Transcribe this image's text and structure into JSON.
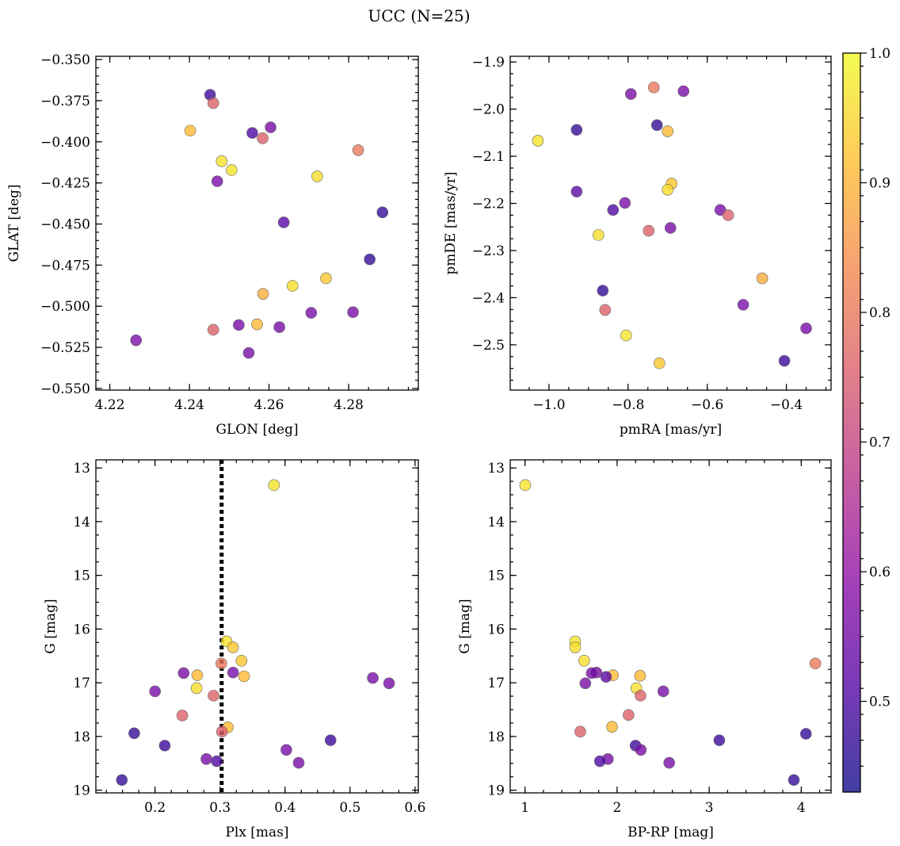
{
  "title": "UCC (N=25)",
  "colorbar": {
    "ticks": [
      "0.5",
      "0.6",
      "0.7",
      "0.8",
      "0.9",
      "1.0"
    ],
    "tick_values": [
      0.5,
      0.6,
      0.7,
      0.8,
      0.9,
      1.0
    ],
    "range": [
      0.43,
      1.0
    ],
    "colormap": [
      "#0d0887",
      "#5302a3",
      "#8b0aa5",
      "#b83289",
      "#db5c68",
      "#f48849",
      "#febd2a",
      "#f0f921"
    ],
    "alpha": 0.78
  },
  "chart_data": [
    {
      "type": "scatter",
      "xlabel": "GLON [deg]",
      "ylabel": "GLAT [deg]",
      "xlim": [
        4.2165,
        4.2975
      ],
      "ylim": [
        -0.551,
        -0.348
      ],
      "y_inverted": false,
      "xticks": [
        4.22,
        4.24,
        4.26,
        4.28
      ],
      "xtick_labels": [
        "4.22",
        "4.24",
        "4.26",
        "4.28"
      ],
      "yticks": [
        -0.35,
        -0.375,
        -0.4,
        -0.425,
        -0.45,
        -0.475,
        -0.5,
        -0.525,
        -0.55
      ],
      "ytick_labels": [
        "−0.350",
        "−0.375",
        "−0.400",
        "−0.425",
        "−0.450",
        "−0.475",
        "−0.500",
        "−0.525",
        "−0.550"
      ],
      "xminor": 0.005,
      "yminor": 0.005,
      "vline": null,
      "points": [
        {
          "x": 4.2452,
          "y": -0.3714,
          "c": 0.48
        },
        {
          "x": 4.246,
          "y": -0.3765,
          "c": 0.76
        },
        {
          "x": 4.2402,
          "y": -0.3932,
          "c": 0.91
        },
        {
          "x": 4.2558,
          "y": -0.3946,
          "c": 0.5
        },
        {
          "x": 4.2604,
          "y": -0.3912,
          "c": 0.56
        },
        {
          "x": 4.2584,
          "y": -0.3978,
          "c": 0.76
        },
        {
          "x": 4.2824,
          "y": -0.4051,
          "c": 0.8
        },
        {
          "x": 4.2481,
          "y": -0.4118,
          "c": 0.97
        },
        {
          "x": 4.2506,
          "y": -0.4172,
          "c": 0.97
        },
        {
          "x": 4.2721,
          "y": -0.421,
          "c": 0.96
        },
        {
          "x": 4.247,
          "y": -0.424,
          "c": 0.56
        },
        {
          "x": 4.2885,
          "y": -0.4429,
          "c": 0.47
        },
        {
          "x": 4.2637,
          "y": -0.449,
          "c": 0.52
        },
        {
          "x": 4.2853,
          "y": -0.4715,
          "c": 0.47
        },
        {
          "x": 4.2743,
          "y": -0.483,
          "c": 0.93
        },
        {
          "x": 4.2659,
          "y": -0.4876,
          "c": 0.96
        },
        {
          "x": 4.2585,
          "y": -0.4925,
          "c": 0.89
        },
        {
          "x": 4.2811,
          "y": -0.5036,
          "c": 0.56
        },
        {
          "x": 4.2706,
          "y": -0.504,
          "c": 0.56
        },
        {
          "x": 4.2524,
          "y": -0.5114,
          "c": 0.56
        },
        {
          "x": 4.257,
          "y": -0.511,
          "c": 0.91
        },
        {
          "x": 4.2626,
          "y": -0.5127,
          "c": 0.56
        },
        {
          "x": 4.246,
          "y": -0.5143,
          "c": 0.76
        },
        {
          "x": 4.2266,
          "y": -0.5207,
          "c": 0.56
        },
        {
          "x": 4.2549,
          "y": -0.5284,
          "c": 0.56
        }
      ]
    },
    {
      "type": "scatter",
      "xlabel": "pmRA [mas/yr]",
      "ylabel": "pmDE [mas/yr]",
      "xlim": [
        -1.098,
        -0.287
      ],
      "ylim": [
        -2.596,
        -1.888
      ],
      "y_inverted": false,
      "xticks": [
        -1.0,
        -0.8,
        -0.6,
        -0.4
      ],
      "xtick_labels": [
        "−1.0",
        "−0.8",
        "−0.6",
        "−0.4"
      ],
      "yticks": [
        -1.9,
        -2.0,
        -2.1,
        -2.2,
        -2.3,
        -2.4,
        -2.5
      ],
      "ytick_labels": [
        "−1.9",
        "−2.0",
        "−2.1",
        "−2.2",
        "−2.3",
        "−2.4",
        "−2.5"
      ],
      "xminor": 0.05,
      "yminor": 0.025,
      "vline": null,
      "points": [
        {
          "x": -0.735,
          "y": -1.954,
          "c": 0.8
        },
        {
          "x": -0.66,
          "y": -1.962,
          "c": 0.56
        },
        {
          "x": -0.793,
          "y": -1.968,
          "c": 0.56
        },
        {
          "x": -0.727,
          "y": -2.034,
          "c": 0.47
        },
        {
          "x": -0.93,
          "y": -2.044,
          "c": 0.47
        },
        {
          "x": -0.7,
          "y": -2.047,
          "c": 0.91
        },
        {
          "x": -1.028,
          "y": -2.067,
          "c": 0.97
        },
        {
          "x": -0.69,
          "y": -2.158,
          "c": 0.93
        },
        {
          "x": -0.7,
          "y": -2.171,
          "c": 0.96
        },
        {
          "x": -0.93,
          "y": -2.175,
          "c": 0.52
        },
        {
          "x": -0.808,
          "y": -2.199,
          "c": 0.56
        },
        {
          "x": -0.838,
          "y": -2.214,
          "c": 0.5
        },
        {
          "x": -0.567,
          "y": -2.214,
          "c": 0.56
        },
        {
          "x": -0.547,
          "y": -2.225,
          "c": 0.76
        },
        {
          "x": -0.693,
          "y": -2.252,
          "c": 0.56
        },
        {
          "x": -0.748,
          "y": -2.258,
          "c": 0.76
        },
        {
          "x": -0.875,
          "y": -2.267,
          "c": 0.96
        },
        {
          "x": -0.461,
          "y": -2.359,
          "c": 0.89
        },
        {
          "x": -0.864,
          "y": -2.385,
          "c": 0.47
        },
        {
          "x": -0.509,
          "y": -2.415,
          "c": 0.56
        },
        {
          "x": -0.858,
          "y": -2.426,
          "c": 0.76
        },
        {
          "x": -0.35,
          "y": -2.465,
          "c": 0.56
        },
        {
          "x": -0.805,
          "y": -2.48,
          "c": 0.97
        },
        {
          "x": -0.405,
          "y": -2.534,
          "c": 0.48
        },
        {
          "x": -0.721,
          "y": -2.539,
          "c": 0.93
        }
      ]
    },
    {
      "type": "scatter",
      "xlabel": "Plx [mas]",
      "ylabel": "G [mag]",
      "xlim": [
        0.109,
        0.605
      ],
      "ylim": [
        12.85,
        19.05
      ],
      "y_inverted": true,
      "xticks": [
        0.2,
        0.3,
        0.4,
        0.5,
        0.6
      ],
      "xtick_labels": [
        "0.2",
        "0.3",
        "0.4",
        "0.5",
        "0.6"
      ],
      "yticks": [
        13,
        14,
        15,
        16,
        17,
        18,
        19
      ],
      "ytick_labels": [
        "13",
        "14",
        "15",
        "16",
        "17",
        "18",
        "19"
      ],
      "xminor": 0.025,
      "yminor": 0.25,
      "vline": 0.3025,
      "points": [
        {
          "x": 0.383,
          "y": 13.32,
          "c": 0.97
        },
        {
          "x": 0.31,
          "y": 16.23,
          "c": 0.97
        },
        {
          "x": 0.32,
          "y": 16.34,
          "c": 0.93
        },
        {
          "x": 0.333,
          "y": 16.59,
          "c": 0.93
        },
        {
          "x": 0.302,
          "y": 16.64,
          "c": 0.8
        },
        {
          "x": 0.32,
          "y": 16.81,
          "c": 0.56
        },
        {
          "x": 0.244,
          "y": 16.82,
          "c": 0.56
        },
        {
          "x": 0.265,
          "y": 16.86,
          "c": 0.91
        },
        {
          "x": 0.337,
          "y": 16.88,
          "c": 0.91
        },
        {
          "x": 0.535,
          "y": 16.91,
          "c": 0.56
        },
        {
          "x": 0.56,
          "y": 17.01,
          "c": 0.56
        },
        {
          "x": 0.264,
          "y": 17.1,
          "c": 0.96
        },
        {
          "x": 0.2,
          "y": 17.16,
          "c": 0.56
        },
        {
          "x": 0.29,
          "y": 17.24,
          "c": 0.76
        },
        {
          "x": 0.242,
          "y": 17.61,
          "c": 0.76
        },
        {
          "x": 0.312,
          "y": 17.83,
          "c": 0.91
        },
        {
          "x": 0.303,
          "y": 17.91,
          "c": 0.76
        },
        {
          "x": 0.168,
          "y": 17.94,
          "c": 0.47
        },
        {
          "x": 0.47,
          "y": 18.07,
          "c": 0.48
        },
        {
          "x": 0.215,
          "y": 18.17,
          "c": 0.48
        },
        {
          "x": 0.402,
          "y": 18.25,
          "c": 0.56
        },
        {
          "x": 0.279,
          "y": 18.42,
          "c": 0.56
        },
        {
          "x": 0.295,
          "y": 18.46,
          "c": 0.5
        },
        {
          "x": 0.421,
          "y": 18.49,
          "c": 0.56
        },
        {
          "x": 0.149,
          "y": 18.81,
          "c": 0.47
        }
      ]
    },
    {
      "type": "scatter",
      "xlabel": "BP-RP [mag]",
      "ylabel": "G [mag]",
      "xlim": [
        0.839,
        4.324
      ],
      "ylim": [
        12.85,
        19.05
      ],
      "y_inverted": true,
      "xticks": [
        1,
        2,
        3,
        4
      ],
      "xtick_labels": [
        "1",
        "2",
        "3",
        "4"
      ],
      "yticks": [
        13,
        14,
        15,
        16,
        17,
        18,
        19
      ],
      "ytick_labels": [
        "13",
        "14",
        "15",
        "16",
        "17",
        "18",
        "19"
      ],
      "xminor": 0.2,
      "yminor": 0.25,
      "vline": null,
      "points": [
        {
          "x": 1.002,
          "y": 13.32,
          "c": 0.97
        },
        {
          "x": 1.545,
          "y": 16.23,
          "c": 0.97
        },
        {
          "x": 1.545,
          "y": 16.34,
          "c": 0.96
        },
        {
          "x": 1.642,
          "y": 16.59,
          "c": 0.96
        },
        {
          "x": 4.153,
          "y": 16.64,
          "c": 0.8
        },
        {
          "x": 1.776,
          "y": 16.81,
          "c": 0.56
        },
        {
          "x": 1.724,
          "y": 16.82,
          "c": 0.56
        },
        {
          "x": 1.955,
          "y": 16.86,
          "c": 0.91
        },
        {
          "x": 2.25,
          "y": 16.87,
          "c": 0.91
        },
        {
          "x": 1.88,
          "y": 16.89,
          "c": 0.52
        },
        {
          "x": 1.655,
          "y": 17.01,
          "c": 0.56
        },
        {
          "x": 2.209,
          "y": 17.1,
          "c": 0.96
        },
        {
          "x": 2.502,
          "y": 17.16,
          "c": 0.56
        },
        {
          "x": 2.254,
          "y": 17.24,
          "c": 0.76
        },
        {
          "x": 2.124,
          "y": 17.6,
          "c": 0.76
        },
        {
          "x": 1.945,
          "y": 17.82,
          "c": 0.91
        },
        {
          "x": 1.6,
          "y": 17.91,
          "c": 0.76
        },
        {
          "x": 4.051,
          "y": 17.95,
          "c": 0.47
        },
        {
          "x": 3.11,
          "y": 18.07,
          "c": 0.48
        },
        {
          "x": 2.2,
          "y": 18.17,
          "c": 0.48
        },
        {
          "x": 2.258,
          "y": 18.25,
          "c": 0.56
        },
        {
          "x": 1.9,
          "y": 18.42,
          "c": 0.56
        },
        {
          "x": 1.813,
          "y": 18.46,
          "c": 0.5
        },
        {
          "x": 2.566,
          "y": 18.49,
          "c": 0.56
        },
        {
          "x": 3.92,
          "y": 18.81,
          "c": 0.47
        }
      ]
    }
  ]
}
